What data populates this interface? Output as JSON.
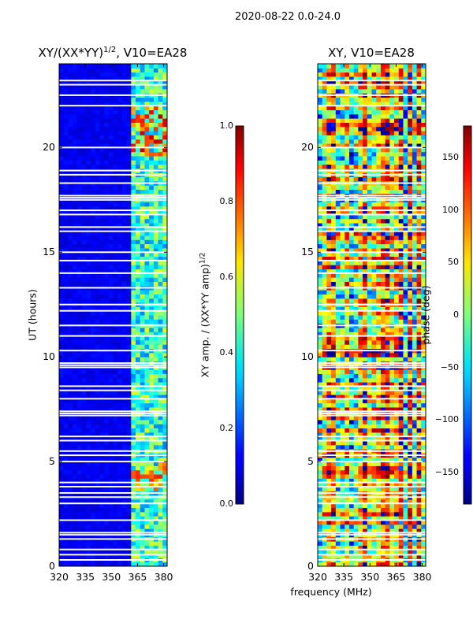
{
  "figure": {
    "suptitle": "2020-08-22 0.0-24.0",
    "shared_xlabel": "frequency (MHz)"
  },
  "chart_data": [
    {
      "type": "heatmap",
      "title_base": "XY/(XX*YY)",
      "title_exp": "1/2",
      "title_suffix": ", V10=EA28",
      "xlabel": "frequency (MHz)",
      "ylabel": "UT (hours)",
      "xlim": [
        320,
        382
      ],
      "ylim": [
        0,
        24
      ],
      "xticks": [
        "320",
        "335",
        "350",
        "365",
        "380"
      ],
      "xtick_values": [
        320,
        335,
        350,
        365,
        380
      ],
      "yticks": [
        "0",
        "5",
        "10",
        "15",
        "20"
      ],
      "ytick_values": [
        0,
        5,
        10,
        15,
        20
      ],
      "colorbar": {
        "label_base": "XY amp. / (XX*YY amp)",
        "label_exp": "1/2",
        "range": [
          0.0,
          1.0
        ],
        "ticks": [
          "0.0",
          "0.2",
          "0.4",
          "0.6",
          "0.8",
          "1.0"
        ],
        "tick_values": [
          0.0,
          0.2,
          0.4,
          0.6,
          0.8,
          1.0
        ],
        "colormap": "jet"
      },
      "blank_hours": [
        0.3,
        0.55,
        0.8,
        1.3,
        1.5,
        1.6,
        2.2,
        3.0,
        3.3,
        3.5,
        3.8,
        4.0,
        5.0,
        5.3,
        5.5,
        6.0,
        6.2,
        7.2,
        7.3,
        7.4,
        8.0,
        8.4,
        8.6,
        9.5,
        9.6,
        9.7,
        10.3,
        11.0,
        11.5,
        12.2,
        12.5,
        13.3,
        14.0,
        14.6,
        15.0,
        16.0,
        16.2,
        16.8,
        17.0,
        17.5,
        17.6,
        17.7,
        18.3,
        18.7,
        18.9,
        20.0,
        22.0,
        22.5,
        23.0,
        23.2
      ]
    },
    {
      "type": "heatmap",
      "title": "XY, V10=EA28",
      "xlabel": "frequency (MHz)",
      "ylabel": "",
      "xlim": [
        320,
        382
      ],
      "ylim": [
        0,
        24
      ],
      "xticks": [
        "320",
        "335",
        "350",
        "365",
        "380"
      ],
      "xtick_values": [
        320,
        335,
        350,
        365,
        380
      ],
      "yticks": [
        "0",
        "5",
        "10",
        "15",
        "20"
      ],
      "ytick_values": [
        0,
        5,
        10,
        15,
        20
      ],
      "colorbar": {
        "label": "phase (deg)",
        "range": [
          -180,
          180
        ],
        "ticks": [
          "−150",
          "−100",
          "−50",
          "0",
          "50",
          "100",
          "150"
        ],
        "tick_values": [
          -150,
          -100,
          -50,
          0,
          50,
          100,
          150
        ],
        "colormap": "jet"
      },
      "blank_hours": [
        0.3,
        0.55,
        0.8,
        1.3,
        1.5,
        1.6,
        2.2,
        3.0,
        3.3,
        3.5,
        3.8,
        4.0,
        5.0,
        5.3,
        5.5,
        6.0,
        6.2,
        7.2,
        7.3,
        7.4,
        8.0,
        8.4,
        8.6,
        9.5,
        9.6,
        9.7,
        10.3,
        11.0,
        11.5,
        12.2,
        12.5,
        13.3,
        14.0,
        14.6,
        15.0,
        16.0,
        16.2,
        16.8,
        17.0,
        17.5,
        17.6,
        17.7,
        18.3,
        18.7,
        18.9,
        20.0,
        22.0,
        22.5,
        23.0,
        23.2
      ]
    }
  ]
}
